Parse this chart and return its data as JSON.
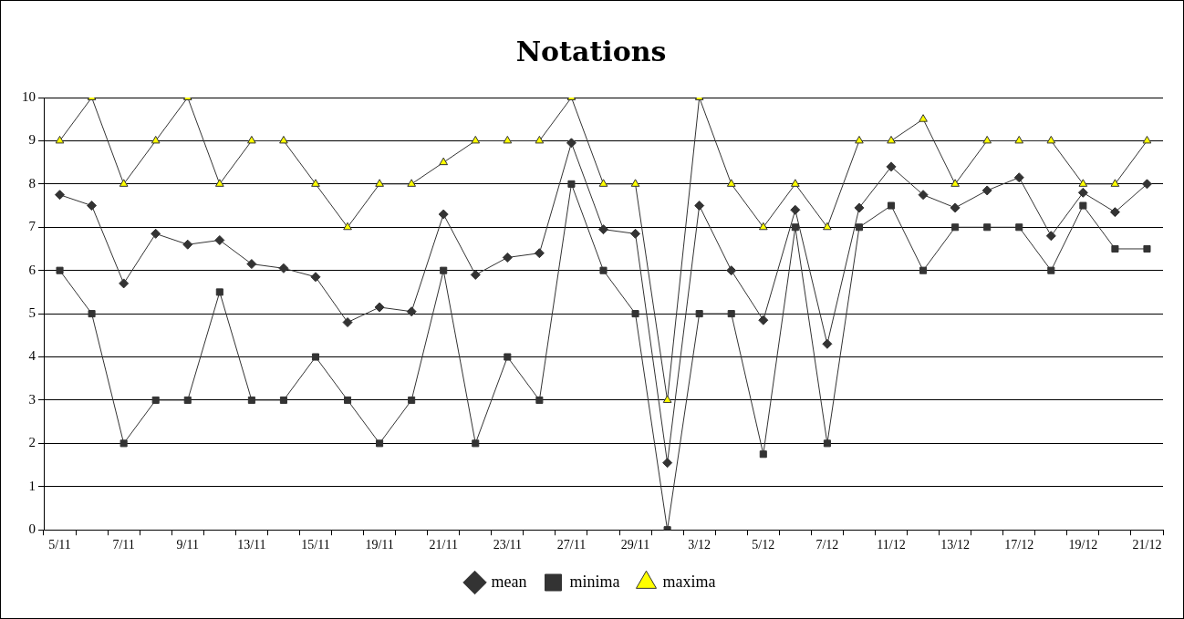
{
  "chart_data": {
    "type": "line",
    "title": "Notations",
    "categories": [
      "5/11",
      null,
      "7/11",
      null,
      "9/11",
      null,
      "13/11",
      null,
      "15/11",
      null,
      "19/11",
      null,
      "21/11",
      null,
      "23/11",
      null,
      "27/11",
      null,
      "29/11",
      null,
      "3/12",
      null,
      "5/12",
      null,
      "7/12",
      null,
      "11/12",
      null,
      "13/12",
      null,
      "17/12",
      null,
      "19/12",
      null,
      "21/12"
    ],
    "series": [
      {
        "name": "mean",
        "color": "#333333",
        "marker": "diamond",
        "values": [
          7.75,
          7.5,
          5.7,
          6.85,
          6.6,
          6.7,
          6.15,
          6.05,
          5.85,
          4.8,
          5.15,
          5.05,
          7.3,
          5.9,
          6.3,
          6.4,
          8.95,
          6.95,
          6.85,
          1.55,
          7.5,
          6,
          4.85,
          7.4,
          4.3,
          7.45,
          8.4,
          7.75,
          7.45,
          7.85,
          8.15,
          6.8,
          7.8,
          7.35,
          8
        ]
      },
      {
        "name": "minima",
        "color": "#333333",
        "marker": "square",
        "values": [
          6,
          5,
          2,
          3,
          3,
          5.5,
          3,
          3,
          4,
          3,
          2,
          3,
          6,
          2,
          4,
          3,
          8,
          6,
          5,
          0,
          5,
          5,
          1.75,
          7,
          2,
          7,
          7.5,
          6,
          7,
          7,
          7,
          6,
          7.5,
          6.5,
          6.5
        ]
      },
      {
        "name": "maxima",
        "color": "#ffff00",
        "marker": "triangle",
        "values": [
          9,
          10,
          8,
          9,
          10,
          8,
          9,
          9,
          8,
          7,
          8,
          8,
          8.5,
          9,
          9,
          9,
          10,
          8,
          8,
          3,
          10,
          8,
          7,
          8,
          7,
          9,
          9,
          9.5,
          8,
          9,
          9,
          9,
          8,
          8,
          9
        ]
      }
    ],
    "ylim": [
      0,
      10
    ],
    "yticks": [
      0,
      1,
      2,
      3,
      4,
      5,
      6,
      7,
      8,
      9,
      10
    ],
    "grid": "y",
    "legend": "bottom"
  }
}
